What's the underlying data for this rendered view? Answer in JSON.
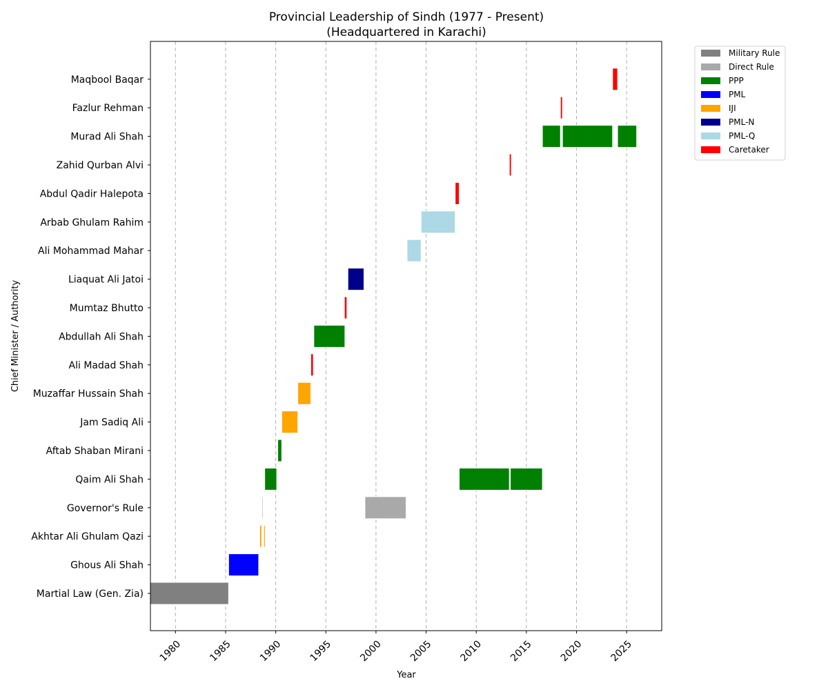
{
  "chart_data": {
    "type": "gantt",
    "title_line1": "Provincial Leadership of Sindh (1977 - Present)",
    "title_line2": "(Headquartered in Karachi)",
    "xlabel": "Year",
    "ylabel": "Chief Minister / Authority",
    "xlim": [
      1977.5,
      2028.5
    ],
    "x_ticks": [
      1980,
      1985,
      1990,
      1995,
      2000,
      2005,
      2010,
      2015,
      2020,
      2025
    ],
    "x_tick_labels": [
      "1980",
      "1985",
      "1990",
      "1995",
      "2000",
      "2005",
      "2010",
      "2015",
      "2020",
      "2025"
    ],
    "grid": "x-dashed",
    "legend_position": "outside-top-right",
    "categories": [
      "Martial Law (Gen. Zia)",
      "Ghous Ali Shah",
      "Akhtar Ali Ghulam Qazi",
      "Governor's Rule",
      "Qaim Ali Shah",
      "Aftab Shaban Mirani",
      "Jam Sadiq Ali",
      "Muzaffar Hussain Shah",
      "Ali Madad Shah",
      "Abdullah Ali Shah",
      "Mumtaz Bhutto",
      "Liaquat Ali Jatoi",
      "Ali Mohammad Mahar",
      "Arbab Ghulam Rahim",
      "Abdul Qadir Halepota",
      "Zahid Qurban Alvi",
      "Murad Ali Shah",
      "Fazlur Rehman",
      "Maqbool Baqar"
    ],
    "legend": [
      {
        "name": "Military Rule",
        "color": "#808080"
      },
      {
        "name": "Direct Rule",
        "color": "#a9a9a9"
      },
      {
        "name": "PPP",
        "color": "#008000"
      },
      {
        "name": "PML",
        "color": "#0000ff"
      },
      {
        "name": "IJI",
        "color": "#ffa500"
      },
      {
        "name": "PML-N",
        "color": "#00008b"
      },
      {
        "name": "PML-Q",
        "color": "#add8e6"
      },
      {
        "name": "Caretaker",
        "color": "#ff0000"
      }
    ],
    "bars": [
      {
        "row": 0,
        "start": 1977.5,
        "end": 1985.3,
        "party": "Military Rule"
      },
      {
        "row": 1,
        "start": 1985.3,
        "end": 1988.3,
        "party": "PML"
      },
      {
        "row": 2,
        "start": 1988.4,
        "end": 1988.6,
        "party": "IJI"
      },
      {
        "row": 2,
        "start": 1988.8,
        "end": 1988.95,
        "party": "IJI"
      },
      {
        "row": 3,
        "start": 1988.65,
        "end": 1988.75,
        "party": "Direct Rule"
      },
      {
        "row": 3,
        "start": 1998.9,
        "end": 2003.0,
        "party": "Direct Rule"
      },
      {
        "row": 4,
        "start": 1988.9,
        "end": 1990.1,
        "party": "PPP"
      },
      {
        "row": 4,
        "start": 2008.3,
        "end": 2013.3,
        "party": "PPP"
      },
      {
        "row": 4,
        "start": 2013.4,
        "end": 2016.6,
        "party": "PPP"
      },
      {
        "row": 5,
        "start": 1990.2,
        "end": 1990.6,
        "party": "PPP"
      },
      {
        "row": 6,
        "start": 1990.6,
        "end": 1992.2,
        "party": "IJI"
      },
      {
        "row": 7,
        "start": 1992.2,
        "end": 1993.5,
        "party": "IJI"
      },
      {
        "row": 8,
        "start": 1993.5,
        "end": 1993.75,
        "party": "Caretaker"
      },
      {
        "row": 9,
        "start": 1993.8,
        "end": 1996.9,
        "party": "PPP"
      },
      {
        "row": 10,
        "start": 1996.85,
        "end": 1997.1,
        "party": "Caretaker"
      },
      {
        "row": 11,
        "start": 1997.2,
        "end": 1998.8,
        "party": "PML-N"
      },
      {
        "row": 12,
        "start": 2003.1,
        "end": 2004.5,
        "party": "PML-Q"
      },
      {
        "row": 13,
        "start": 2004.5,
        "end": 2007.9,
        "party": "PML-Q"
      },
      {
        "row": 14,
        "start": 2007.9,
        "end": 2008.3,
        "party": "Caretaker"
      },
      {
        "row": 15,
        "start": 2013.3,
        "end": 2013.5,
        "party": "Caretaker"
      },
      {
        "row": 16,
        "start": 2016.6,
        "end": 2018.4,
        "party": "PPP"
      },
      {
        "row": 16,
        "start": 2018.6,
        "end": 2023.6,
        "party": "PPP"
      },
      {
        "row": 16,
        "start": 2024.1,
        "end": 2026.0,
        "party": "PPP"
      },
      {
        "row": 17,
        "start": 2018.4,
        "end": 2018.6,
        "party": "Caretaker"
      },
      {
        "row": 18,
        "start": 2023.6,
        "end": 2024.1,
        "party": "Caretaker"
      }
    ]
  }
}
